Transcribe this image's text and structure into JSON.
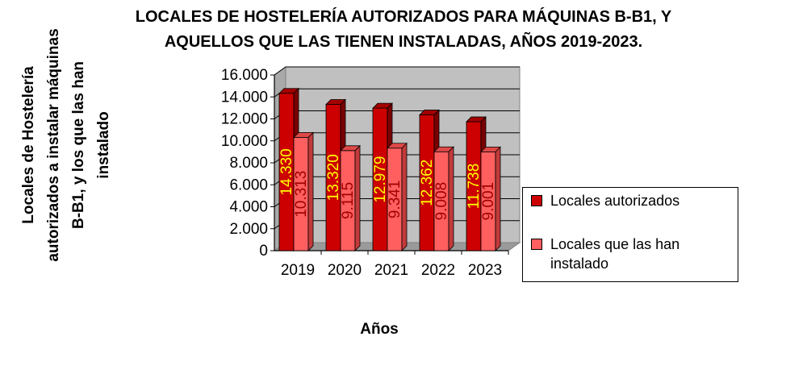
{
  "chart_data": {
    "type": "bar",
    "title_lines": [
      "LOCALES DE HOSTELERÍA AUTORIZADOS PARA MÁQUINAS B-B1, Y",
      "AQUELLOS QUE LAS TIENEN INSTALADAS, AÑOS 2019-2023."
    ],
    "ylabel": "Locales de Hostelería autorizados a instalar máquinas B-B1, y los que las han instalado",
    "xlabel": "Años",
    "categories": [
      "2019",
      "2020",
      "2021",
      "2022",
      "2023"
    ],
    "series": [
      {
        "name": "Locales autorizados",
        "values": [
          14330,
          13320,
          12979,
          12362,
          11738
        ],
        "labels": [
          "14.330",
          "13.320",
          "12.979",
          "12.362",
          "11.738"
        ],
        "color": "#cc0000"
      },
      {
        "name": "Locales que las han instalado",
        "values": [
          10313,
          9115,
          9341,
          9008,
          9001
        ],
        "labels": [
          "10.313",
          "9.115",
          "9.341",
          "9.008",
          "9.001"
        ],
        "color": "#ff5f5f"
      }
    ],
    "ylim": [
      0,
      16000
    ],
    "yticks": [
      0,
      2000,
      4000,
      6000,
      8000,
      10000,
      12000,
      14000,
      16000
    ],
    "ytick_labels": [
      "0",
      "2.000",
      "4.000",
      "6.000",
      "8.000",
      "10.000",
      "12.000",
      "14.000",
      "16.000"
    ],
    "grid": true,
    "plot_background": "#c0c0c0",
    "data_label_color": "#ffff00",
    "legend_position": "right"
  }
}
